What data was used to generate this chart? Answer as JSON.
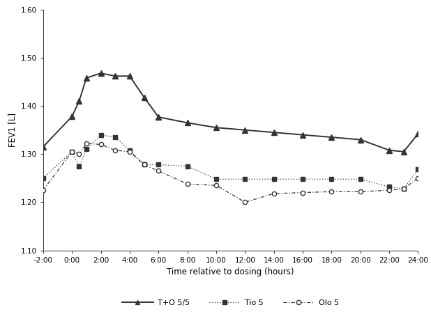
{
  "title": "",
  "xlabel": "Time relative to dosing (hours)",
  "ylabel": "FEV1 [L]",
  "ylim": [
    1.1,
    1.6
  ],
  "yticks": [
    1.1,
    1.2,
    1.3,
    1.4,
    1.5,
    1.6
  ],
  "xlim": [
    -2,
    24
  ],
  "xticks": [
    -2,
    0,
    2,
    4,
    6,
    8,
    10,
    12,
    14,
    16,
    18,
    20,
    22,
    24
  ],
  "xticklabels": [
    "-2:00",
    "0:00",
    "2:00",
    "4:00",
    "6:00",
    "8:00",
    "10:00",
    "12:00",
    "14:00",
    "16:00",
    "18:00",
    "20:00",
    "22:00",
    "24:00"
  ],
  "to55_x": [
    -2,
    0,
    0.5,
    1,
    2,
    3,
    4,
    5,
    6,
    8,
    10,
    12,
    14,
    16,
    18,
    20,
    22,
    23,
    24
  ],
  "to55_y": [
    1.315,
    1.378,
    1.41,
    1.458,
    1.468,
    1.462,
    1.462,
    1.418,
    1.377,
    1.365,
    1.355,
    1.35,
    1.345,
    1.34,
    1.335,
    1.33,
    1.308,
    1.305,
    1.342
  ],
  "tio5_x": [
    -2,
    0,
    0.5,
    1,
    2,
    3,
    4,
    5,
    6,
    8,
    10,
    12,
    14,
    16,
    18,
    20,
    22,
    23,
    24
  ],
  "tio5_y": [
    1.25,
    1.305,
    1.275,
    1.31,
    1.34,
    1.335,
    1.308,
    1.278,
    1.278,
    1.275,
    1.248,
    1.248,
    1.248,
    1.248,
    1.248,
    1.248,
    1.232,
    1.228,
    1.268
  ],
  "olo5_x": [
    -2,
    0,
    0.5,
    1,
    2,
    3,
    4,
    5,
    6,
    8,
    10,
    12,
    14,
    16,
    18,
    20,
    22,
    23,
    24
  ],
  "olo5_y": [
    1.225,
    1.305,
    1.3,
    1.322,
    1.32,
    1.308,
    1.305,
    1.278,
    1.265,
    1.238,
    1.235,
    1.2,
    1.218,
    1.22,
    1.222,
    1.222,
    1.225,
    1.228,
    1.25
  ],
  "to55_color": "#333333",
  "tio5_color": "#333333",
  "olo5_color": "#333333",
  "legend_labels": [
    "T+O 5/5",
    "Tio 5",
    "Olo 5"
  ],
  "background_color": "#ffffff"
}
